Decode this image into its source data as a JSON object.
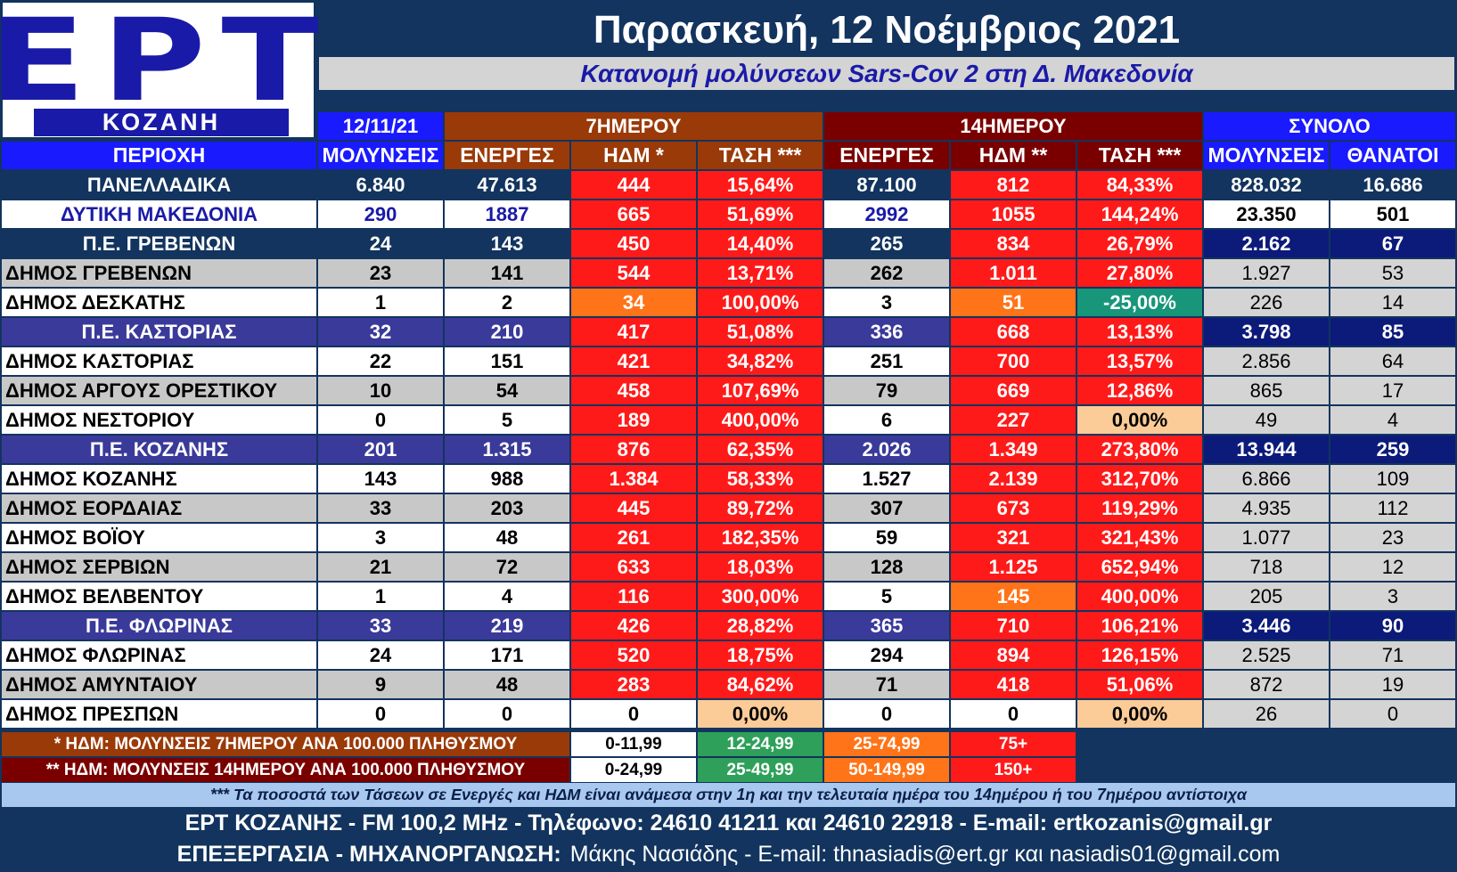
{
  "header": {
    "logo_text": "ΕΡΤ",
    "logo_subtext": "ΚΟΖΑΝΗ",
    "title": "Παρασκευή, 12 Νοέμβριος 2021",
    "subtitle": "Κατανομή μολύνσεων Sars-Cov 2 στη Δ. Μακεδονία"
  },
  "colors": {
    "page_bg": "#12345e",
    "heat_red": "#ff1a1a",
    "heat_orange": "#ff7418",
    "heat_peach": "#fbcc98",
    "heat_teal": "#17967a",
    "heat_green": "#2ea05a",
    "group_7d": "#9a3a08",
    "group_14d": "#7a0000",
    "header_blue": "#1a1aff",
    "region_purple": "#3a3a9a",
    "totals_navy": "#0c1a7a"
  },
  "chart_data": {
    "type": "table",
    "group_headers": [
      "12/11/21",
      "7ΗΜΕΡΟΥ",
      "14ΗΜΕΡΟΥ",
      "ΣΥΝΟΛΟ"
    ],
    "columns": [
      "ΠΕΡΙΟΧΗ",
      "ΜΟΛΥΝΣΕΙΣ",
      "ΕΝΕΡΓΕΣ",
      "ΗΔΜ *",
      "ΤΑΣΗ ***",
      "ΕΝΕΡΓΕΣ",
      "ΗΔΜ **",
      "ΤΑΣΗ ***",
      "ΜΟΛΥΝΣΕΙΣ",
      "ΘΑΝΑΤΟΙ"
    ],
    "rows": [
      {
        "kind": "country",
        "cells": [
          "ΠΑΝΕΛΛΑΔΙΚΑ",
          "6.840",
          "47.613",
          "444",
          "15,64%",
          "87.100",
          "812",
          "84,33%",
          "828.032",
          "16.686"
        ],
        "heat": [
          "red",
          "red",
          "red",
          "red"
        ]
      },
      {
        "kind": "wm",
        "cells": [
          "ΔΥΤΙΚΗ ΜΑΚΕΔΟΝΙΑ",
          "290",
          "1887",
          "665",
          "51,69%",
          "2992",
          "1055",
          "144,24%",
          "23.350",
          "501"
        ],
        "heat": [
          "red",
          "red",
          "red",
          "red"
        ]
      },
      {
        "kind": "pe1",
        "cells": [
          "Π.Ε. ΓΡΕΒΕΝΩΝ",
          "24",
          "143",
          "450",
          "14,40%",
          "265",
          "834",
          "26,79%",
          "2.162",
          "67"
        ],
        "heat": [
          "red",
          "red",
          "red",
          "red"
        ]
      },
      {
        "kind": "dimos",
        "cells": [
          "ΔΗΜΟΣ ΓΡΕΒΕΝΩΝ",
          "23",
          "141",
          "544",
          "13,71%",
          "262",
          "1.011",
          "27,80%",
          "1.927",
          "53"
        ],
        "heat": [
          "red",
          "red",
          "red",
          "red"
        ]
      },
      {
        "kind": "dimos",
        "cells": [
          "ΔΗΜΟΣ ΔΕΣΚΑΤΗΣ",
          "1",
          "2",
          "34",
          "100,00%",
          "3",
          "51",
          "-25,00%",
          "226",
          "14"
        ],
        "heat": [
          "orange",
          "red",
          "orange",
          "teal"
        ]
      },
      {
        "kind": "pe",
        "cells": [
          "Π.Ε. ΚΑΣΤΟΡΙΑΣ",
          "32",
          "210",
          "417",
          "51,08%",
          "336",
          "668",
          "13,13%",
          "3.798",
          "85"
        ],
        "heat": [
          "red",
          "red",
          "red",
          "red"
        ]
      },
      {
        "kind": "dimos",
        "cells": [
          "ΔΗΜΟΣ ΚΑΣΤΟΡΙΑΣ",
          "22",
          "151",
          "421",
          "34,82%",
          "251",
          "700",
          "13,57%",
          "2.856",
          "64"
        ],
        "heat": [
          "red",
          "red",
          "red",
          "red"
        ]
      },
      {
        "kind": "dimos",
        "cells": [
          "ΔΗΜΟΣ ΑΡΓΟΥΣ ΟΡΕΣΤΙΚΟΥ",
          "10",
          "54",
          "458",
          "107,69%",
          "79",
          "669",
          "12,86%",
          "865",
          "17"
        ],
        "heat": [
          "red",
          "red",
          "red",
          "red"
        ]
      },
      {
        "kind": "dimos",
        "cells": [
          "ΔΗΜΟΣ ΝΕΣΤΟΡΙΟΥ",
          "0",
          "5",
          "189",
          "400,00%",
          "6",
          "227",
          "0,00%",
          "49",
          "4"
        ],
        "heat": [
          "red",
          "red",
          "red",
          "peach"
        ]
      },
      {
        "kind": "pe",
        "cells": [
          "Π.Ε. ΚΟΖΑΝΗΣ",
          "201",
          "1.315",
          "876",
          "62,35%",
          "2.026",
          "1.349",
          "273,80%",
          "13.944",
          "259"
        ],
        "heat": [
          "red",
          "red",
          "red",
          "red"
        ]
      },
      {
        "kind": "dimos",
        "cells": [
          "ΔΗΜΟΣ ΚΟΖΑΝΗΣ",
          "143",
          "988",
          "1.384",
          "58,33%",
          "1.527",
          "2.139",
          "312,70%",
          "6.866",
          "109"
        ],
        "heat": [
          "red",
          "red",
          "red",
          "red"
        ]
      },
      {
        "kind": "dimos",
        "cells": [
          "ΔΗΜΟΣ ΕΟΡΔΑΙΑΣ",
          "33",
          "203",
          "445",
          "89,72%",
          "307",
          "673",
          "119,29%",
          "4.935",
          "112"
        ],
        "heat": [
          "red",
          "red",
          "red",
          "red"
        ]
      },
      {
        "kind": "dimos",
        "cells": [
          "ΔΗΜΟΣ ΒΟΪΟΥ",
          "3",
          "48",
          "261",
          "182,35%",
          "59",
          "321",
          "321,43%",
          "1.077",
          "23"
        ],
        "heat": [
          "red",
          "red",
          "red",
          "red"
        ]
      },
      {
        "kind": "dimos",
        "cells": [
          "ΔΗΜΟΣ ΣΕΡΒΙΩΝ",
          "21",
          "72",
          "633",
          "18,03%",
          "128",
          "1.125",
          "652,94%",
          "718",
          "12"
        ],
        "heat": [
          "red",
          "red",
          "red",
          "red"
        ]
      },
      {
        "kind": "dimos",
        "cells": [
          "ΔΗΜΟΣ ΒΕΛΒΕΝΤΟΥ",
          "1",
          "4",
          "116",
          "300,00%",
          "5",
          "145",
          "400,00%",
          "205",
          "3"
        ],
        "heat": [
          "red",
          "red",
          "orange",
          "red"
        ]
      },
      {
        "kind": "pe",
        "cells": [
          "Π.Ε. ΦΛΩΡΙΝΑΣ",
          "33",
          "219",
          "426",
          "28,82%",
          "365",
          "710",
          "106,21%",
          "3.446",
          "90"
        ],
        "heat": [
          "red",
          "red",
          "red",
          "red"
        ]
      },
      {
        "kind": "dimos",
        "cells": [
          "ΔΗΜΟΣ ΦΛΩΡΙΝΑΣ",
          "24",
          "171",
          "520",
          "18,75%",
          "294",
          "894",
          "126,15%",
          "2.525",
          "71"
        ],
        "heat": [
          "red",
          "red",
          "red",
          "red"
        ]
      },
      {
        "kind": "dimos",
        "cells": [
          "ΔΗΜΟΣ ΑΜΥΝΤΑΙΟΥ",
          "9",
          "48",
          "283",
          "84,62%",
          "71",
          "418",
          "51,06%",
          "872",
          "19"
        ],
        "heat": [
          "red",
          "red",
          "red",
          "red"
        ]
      },
      {
        "kind": "dimos",
        "cells": [
          "ΔΗΜΟΣ ΠΡΕΣΠΩΝ",
          "0",
          "0",
          "0",
          "0,00%",
          "0",
          "0",
          "0,00%",
          "26",
          "0"
        ],
        "heat": [
          "white",
          "peach",
          "white",
          "peach"
        ]
      }
    ],
    "legend": [
      {
        "label": "* ΗΔΜ: ΜΟΛΥΝΣΕΙΣ 7ΗΜΕΡΟΥ ΑΝΑ 100.000 ΠΛΗΘΥΣΜΟΥ",
        "ranges": [
          "0-11,99",
          "12-24,99",
          "25-74,99",
          "75+"
        ]
      },
      {
        "label": "** ΗΔΜ: ΜΟΛΥΝΣΕΙΣ 14ΗΜΕΡΟΥ ΑΝΑ 100.000 ΠΛΗΘΥΣΜΟΥ",
        "ranges": [
          "0-24,99",
          "25-49,99",
          "50-149,99",
          "150+"
        ]
      }
    ]
  },
  "notes": {
    "trend_note": "*** Τα ποσοστά των Τάσεων σε Ενεργές και ΗΔΜ είναι ανάμεσα στην 1η και την τελευταία ημέρα του 14ημέρου ή του 7ημέρου αντίστοιχα"
  },
  "footer": {
    "line1": "ΕΡΤ ΚΟΖΑΝΗΣ - FM 100,2 MHz - Τηλέφωνο:  24610 41211 και 24610 22918 - E-mail: ertkozanis@gmail.gr",
    "line2_strong": "ΕΠΕΞΕΡΓΑΣΙΑ  -  ΜΗΧΑΝΟΡΓΑΝΩΣΗ:",
    "line2_rest": "Μάκης Νασιάδης  -   E-mail: thnasiadis@ert.gr και nasiadis01@gmail.com"
  }
}
